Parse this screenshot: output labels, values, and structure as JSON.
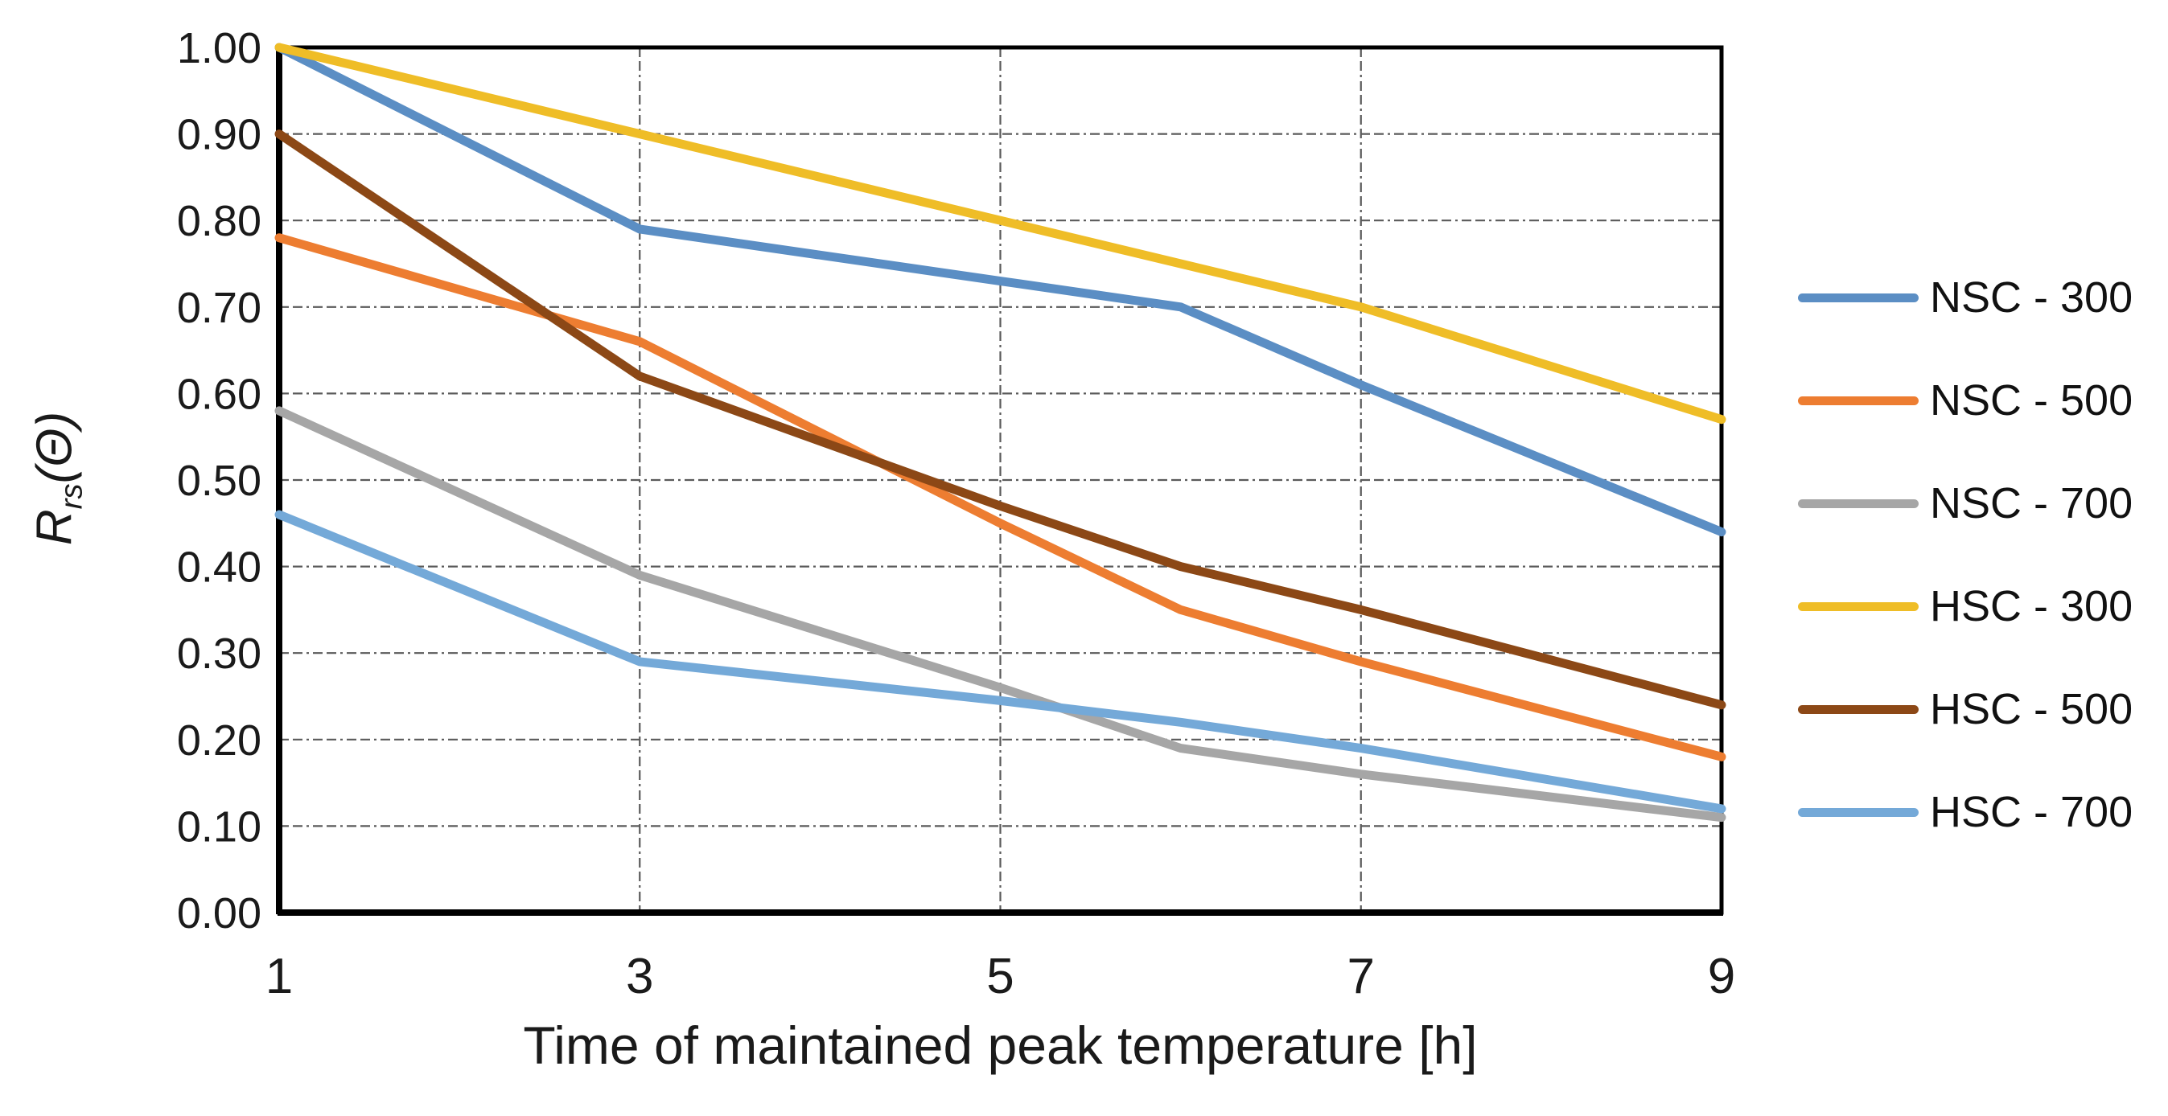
{
  "chart_data": {
    "type": "line",
    "x": [
      1,
      3,
      5,
      6,
      7,
      9
    ],
    "x_ticks": [
      1,
      3,
      5,
      7,
      9
    ],
    "xlim": [
      1,
      9
    ],
    "ylim": [
      0,
      1.0
    ],
    "ytick_step": 0.1,
    "ytick_format_decimals": 2,
    "grid": "dashed",
    "legend_position": "right",
    "xlabel": "Time of maintained peak temperature [h]",
    "ylabel": {
      "base": "R",
      "sub": "rs",
      "paren": "(Θ)"
    },
    "series": [
      {
        "name": "NSC - 300",
        "color": "#5B8EC4",
        "values": [
          1.0,
          0.79,
          0.73,
          0.7,
          0.61,
          0.44
        ]
      },
      {
        "name": "NSC - 500",
        "color": "#ED7D31",
        "values": [
          0.78,
          0.66,
          0.45,
          0.35,
          0.29,
          0.18
        ]
      },
      {
        "name": "NSC - 700",
        "color": "#A6A6A6",
        "values": [
          0.58,
          0.39,
          0.26,
          0.19,
          0.16,
          0.11
        ]
      },
      {
        "name": "HSC - 300",
        "color": "#EFBD27",
        "values": [
          1.0,
          0.9,
          0.8,
          0.75,
          0.7,
          0.57
        ]
      },
      {
        "name": "HSC - 500",
        "color": "#8C4816",
        "values": [
          0.9,
          0.62,
          0.47,
          0.4,
          0.35,
          0.24
        ]
      },
      {
        "name": "HSC - 700",
        "color": "#74A9D8",
        "values": [
          0.46,
          0.29,
          0.245,
          0.22,
          0.19,
          0.12
        ]
      }
    ]
  },
  "colors": {
    "background": "#FFFFFF",
    "axis": "#000000",
    "grid": "#5A5A5A",
    "text": "#1A1A1A"
  }
}
